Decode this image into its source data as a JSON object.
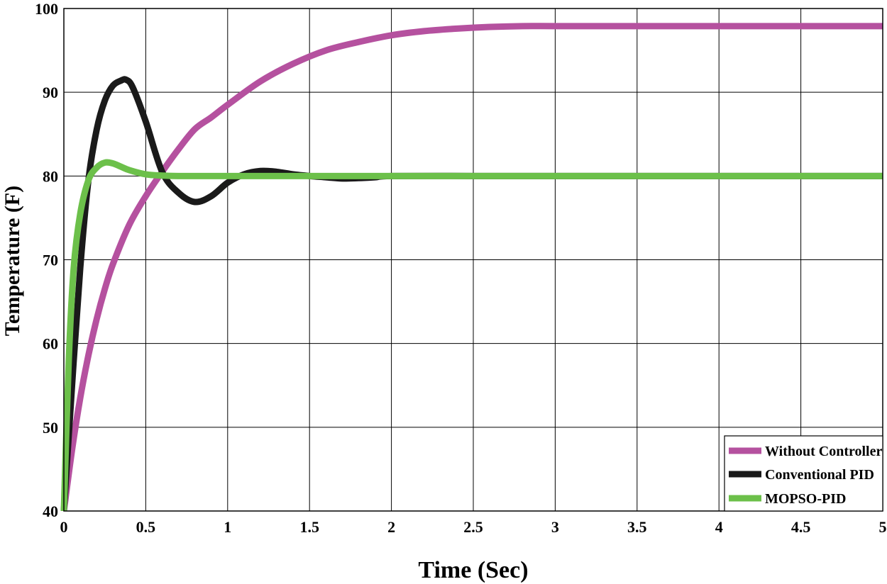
{
  "chart_data": {
    "type": "line",
    "title": "",
    "xlabel": "Time (Sec)",
    "ylabel": "Temperature (F)",
    "xlim": [
      0,
      5
    ],
    "ylim": [
      40,
      100
    ],
    "x_ticks": [
      "0",
      "0.5",
      "1",
      "1.5",
      "2",
      "2.5",
      "3",
      "3.5",
      "4",
      "4.5",
      "5"
    ],
    "y_ticks": [
      "40",
      "50",
      "60",
      "70",
      "80",
      "90",
      "100"
    ],
    "grid": true,
    "legend_position": "bottom-right",
    "series": [
      {
        "name": "Without Controller",
        "color": "#b5519f",
        "x": [
          0,
          0.05,
          0.1,
          0.15,
          0.2,
          0.25,
          0.3,
          0.4,
          0.5,
          0.6,
          0.7,
          0.8,
          0.9,
          1.0,
          1.2,
          1.4,
          1.6,
          1.8,
          2.0,
          2.2,
          2.4,
          2.6,
          2.8,
          3.0,
          3.5,
          4.0,
          4.5,
          5.0
        ],
        "values": [
          40,
          47.3,
          53.5,
          58.6,
          62.9,
          66.5,
          69.5,
          74.2,
          77.6,
          80.5,
          83.2,
          85.6,
          87.0,
          88.5,
          91.3,
          93.4,
          95.0,
          96.0,
          96.8,
          97.3,
          97.6,
          97.8,
          97.9,
          97.9,
          97.9,
          97.9,
          97.9,
          97.9
        ]
      },
      {
        "name": "Conventional PID",
        "color": "#1a1a1a",
        "x": [
          0,
          0.05,
          0.1,
          0.15,
          0.2,
          0.25,
          0.3,
          0.35,
          0.38,
          0.42,
          0.5,
          0.6,
          0.7,
          0.8,
          0.9,
          1.0,
          1.1,
          1.2,
          1.3,
          1.4,
          1.5,
          1.6,
          1.7,
          1.8,
          1.9,
          2.0,
          2.5,
          3.0,
          3.5,
          4.0,
          4.5,
          5.0
        ],
        "values": [
          40,
          55,
          69,
          79.5,
          85.5,
          89,
          90.8,
          91.4,
          91.5,
          90.6,
          86.5,
          80.5,
          78,
          76.9,
          77.6,
          79.2,
          80.2,
          80.6,
          80.5,
          80.2,
          80.0,
          79.85,
          79.7,
          79.75,
          79.85,
          80.0,
          80,
          80,
          80,
          80,
          80,
          80
        ]
      },
      {
        "name": "MOPSO-PID",
        "color": "#6cc04a",
        "x": [
          0,
          0.03,
          0.06,
          0.1,
          0.15,
          0.2,
          0.25,
          0.3,
          0.35,
          0.4,
          0.5,
          0.6,
          0.7,
          0.8,
          1.0,
          1.5,
          2.0,
          2.5,
          3.0,
          3.5,
          4.0,
          4.5,
          5.0
        ],
        "values": [
          40,
          58,
          69,
          75.5,
          79.5,
          81,
          81.6,
          81.5,
          81.1,
          80.7,
          80.2,
          80.05,
          80.0,
          80.0,
          80,
          80,
          80,
          80,
          80,
          80,
          80,
          80,
          80
        ]
      }
    ]
  }
}
